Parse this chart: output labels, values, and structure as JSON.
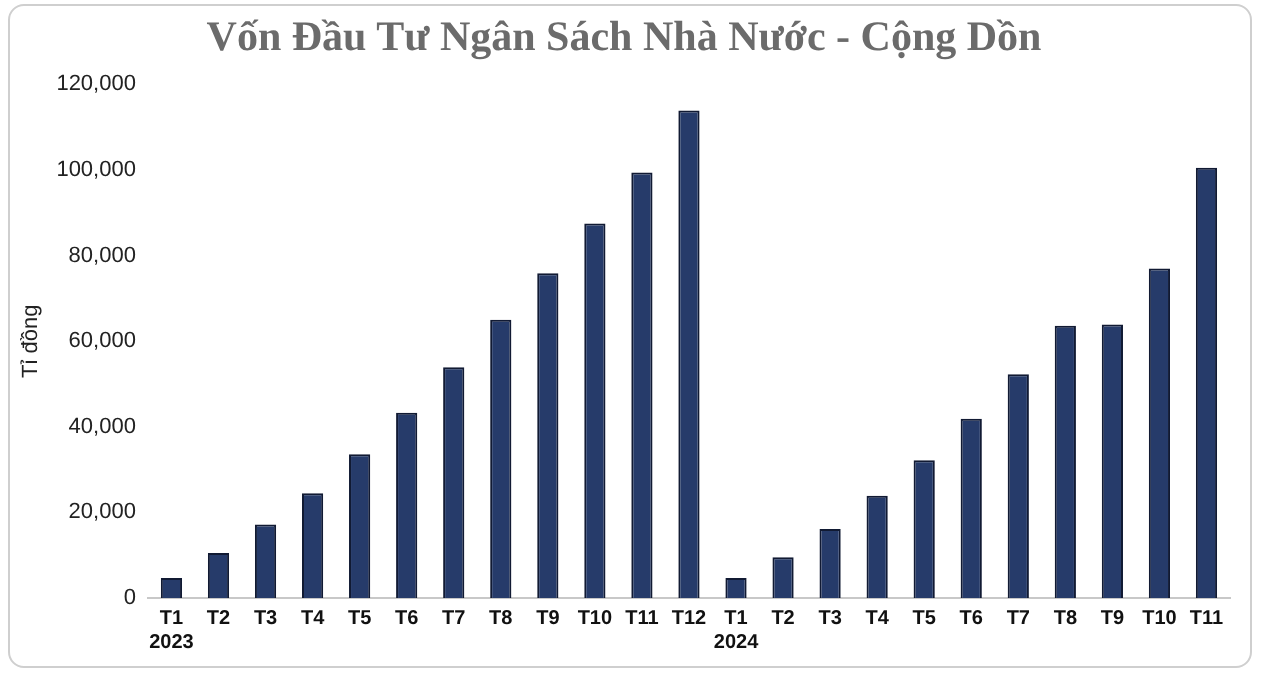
{
  "chart_data": {
    "type": "bar",
    "title": "Vốn Đầu Tư Ngân Sách Nhà Nước - Cộng Dồn",
    "ylabel": "Tỉ đồng",
    "categories": [
      "T1\n2023",
      "T2",
      "T3",
      "T4",
      "T5",
      "T6",
      "T7",
      "T8",
      "T9",
      "T10",
      "T11",
      "T12",
      "T1\n2024",
      "T2",
      "T3",
      "T4",
      "T5",
      "T6",
      "T7",
      "T8",
      "T9",
      "T10",
      "T11"
    ],
    "values": [
      4700,
      10500,
      17200,
      24500,
      33600,
      43300,
      53900,
      65000,
      75900,
      87500,
      99400,
      113900,
      4700,
      9500,
      16100,
      23900,
      32200,
      41900,
      52300,
      63600,
      63900,
      77000,
      100500
    ],
    "color": "#263b6a",
    "ylim": [
      0,
      120000
    ],
    "yticks": [
      0,
      {
        "value": 20000,
        "label": "20,000"
      },
      {
        "value": 40000,
        "label": "40,000"
      },
      {
        "value": 60000,
        "label": "60,000"
      },
      {
        "value": 80000,
        "label": "80,000"
      },
      {
        "value": 100000,
        "label": "100,000"
      },
      {
        "value": 120000,
        "label": "120,000"
      }
    ],
    "grid": false,
    "legend": false
  }
}
